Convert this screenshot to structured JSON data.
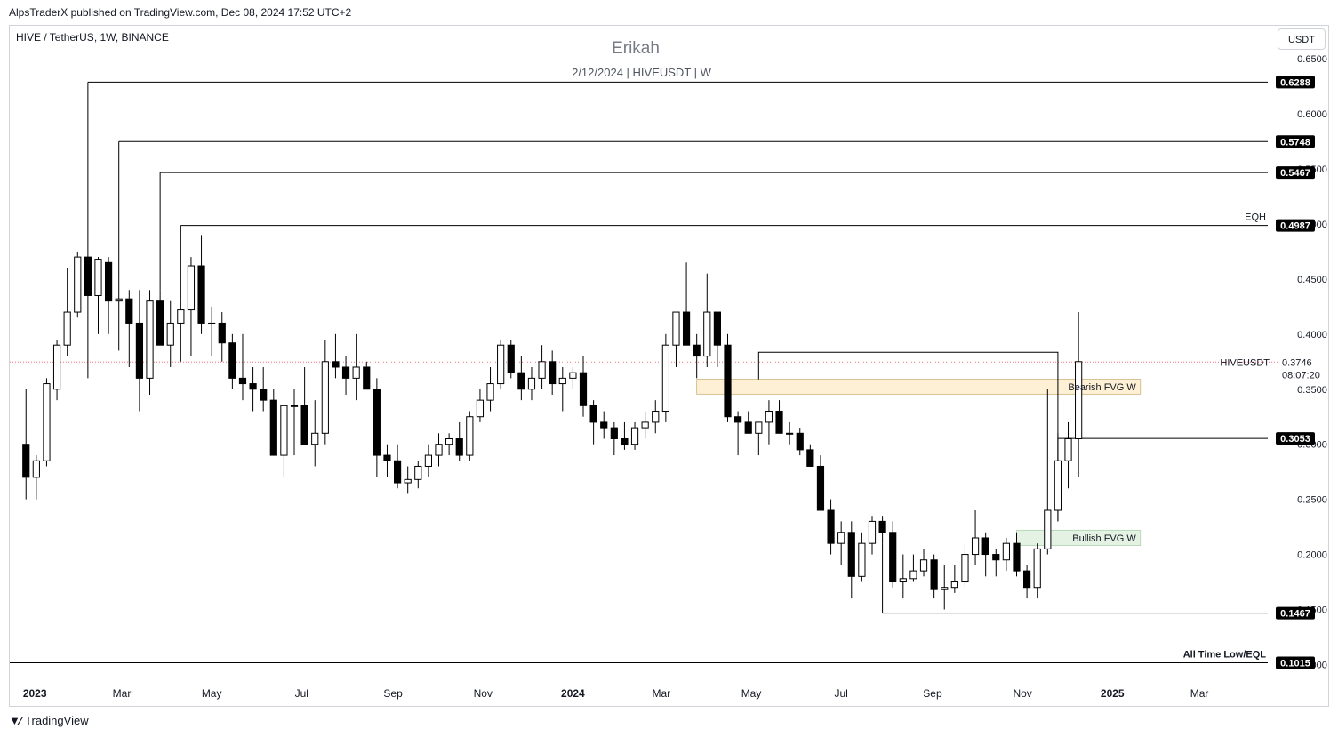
{
  "header": {
    "published_by": "AlpsTraderX published on TradingView.com, Dec 08, 2024 17:52 UTC+2",
    "symbol_label": "HIVE / TetherUS, 1W, BINANCE",
    "title": "Erikah",
    "subtitle": "2/12/2024 | HIVEUSDT | W",
    "currency": "USDT"
  },
  "footer": {
    "brand": "TradingView",
    "logo_icon": "tradingview-logo-icon"
  },
  "colors": {
    "up_body": "#ffffff",
    "down_body": "#000000",
    "wick": "#000000",
    "bearish_fvg": "#fdf0d5",
    "bullish_fvg": "#e4f2e4",
    "current_price_line": "#f23645"
  },
  "chart_data": {
    "type": "candlestick",
    "symbol": "HIVEUSDT",
    "interval": "1W",
    "y_axis": {
      "ticks": [
        "0.6500",
        "0.6000",
        "0.5500",
        "0.5000",
        "0.4500",
        "0.4000",
        "0.3500",
        "0.3000",
        "0.2500",
        "0.2000",
        "0.1500",
        "0.1000"
      ],
      "range": [
        0.085,
        0.68
      ]
    },
    "x_axis": {
      "labels": [
        "2023",
        "Mar",
        "May",
        "Jul",
        "Sep",
        "Nov",
        "2024",
        "Mar",
        "May",
        "Jul",
        "Sep",
        "Nov",
        "2025",
        "Mar"
      ],
      "label_dates": [
        "2023-01-01",
        "2023-03-01",
        "2023-05-01",
        "2023-07-01",
        "2023-09-01",
        "2023-11-01",
        "2024-01-01",
        "2024-03-01",
        "2024-05-01",
        "2024-07-01",
        "2024-09-01",
        "2024-11-01",
        "2025-01-01",
        "2025-03-01"
      ],
      "bold_labels": [
        "2023",
        "2024",
        "2025"
      ],
      "range": [
        "2022-12-15",
        "2025-04-20"
      ]
    },
    "first_candle_week": "2022-12-26",
    "candles": [
      [
        0.3,
        0.35,
        0.25,
        0.27
      ],
      [
        0.27,
        0.29,
        0.25,
        0.285
      ],
      [
        0.285,
        0.36,
        0.28,
        0.355
      ],
      [
        0.35,
        0.395,
        0.34,
        0.39
      ],
      [
        0.39,
        0.46,
        0.38,
        0.42
      ],
      [
        0.42,
        0.475,
        0.415,
        0.47
      ],
      [
        0.47,
        0.475,
        0.36,
        0.435
      ],
      [
        0.435,
        0.47,
        0.4,
        0.468
      ],
      [
        0.465,
        0.47,
        0.4,
        0.43
      ],
      [
        0.43,
        0.45,
        0.385,
        0.432
      ],
      [
        0.432,
        0.44,
        0.37,
        0.41
      ],
      [
        0.41,
        0.44,
        0.33,
        0.36
      ],
      [
        0.36,
        0.44,
        0.345,
        0.43
      ],
      [
        0.43,
        0.44,
        0.39,
        0.39
      ],
      [
        0.39,
        0.43,
        0.37,
        0.41
      ],
      [
        0.41,
        0.43,
        0.375,
        0.422
      ],
      [
        0.422,
        0.47,
        0.38,
        0.462
      ],
      [
        0.462,
        0.49,
        0.4,
        0.41
      ],
      [
        0.41,
        0.425,
        0.38,
        0.41
      ],
      [
        0.41,
        0.42,
        0.375,
        0.392
      ],
      [
        0.392,
        0.4,
        0.35,
        0.36
      ],
      [
        0.36,
        0.4,
        0.34,
        0.355
      ],
      [
        0.355,
        0.37,
        0.33,
        0.35
      ],
      [
        0.35,
        0.37,
        0.33,
        0.34
      ],
      [
        0.34,
        0.35,
        0.29,
        0.29
      ],
      [
        0.29,
        0.33,
        0.27,
        0.335
      ],
      [
        0.335,
        0.35,
        0.29,
        0.335
      ],
      [
        0.335,
        0.37,
        0.3,
        0.3
      ],
      [
        0.3,
        0.34,
        0.28,
        0.31
      ],
      [
        0.31,
        0.395,
        0.3,
        0.375
      ],
      [
        0.375,
        0.4,
        0.36,
        0.37
      ],
      [
        0.37,
        0.38,
        0.345,
        0.36
      ],
      [
        0.36,
        0.4,
        0.34,
        0.37
      ],
      [
        0.37,
        0.375,
        0.35,
        0.35
      ],
      [
        0.35,
        0.36,
        0.27,
        0.29
      ],
      [
        0.29,
        0.3,
        0.27,
        0.285
      ],
      [
        0.285,
        0.3,
        0.26,
        0.265
      ],
      [
        0.265,
        0.28,
        0.255,
        0.268
      ],
      [
        0.268,
        0.285,
        0.26,
        0.28
      ],
      [
        0.28,
        0.3,
        0.27,
        0.29
      ],
      [
        0.29,
        0.31,
        0.28,
        0.3
      ],
      [
        0.3,
        0.31,
        0.29,
        0.305
      ],
      [
        0.305,
        0.32,
        0.285,
        0.29
      ],
      [
        0.29,
        0.33,
        0.285,
        0.325
      ],
      [
        0.325,
        0.35,
        0.32,
        0.34
      ],
      [
        0.34,
        0.37,
        0.33,
        0.355
      ],
      [
        0.355,
        0.395,
        0.35,
        0.39
      ],
      [
        0.39,
        0.395,
        0.36,
        0.365
      ],
      [
        0.365,
        0.38,
        0.34,
        0.35
      ],
      [
        0.35,
        0.37,
        0.34,
        0.36
      ],
      [
        0.36,
        0.39,
        0.35,
        0.375
      ],
      [
        0.375,
        0.385,
        0.345,
        0.355
      ],
      [
        0.355,
        0.37,
        0.33,
        0.36
      ],
      [
        0.36,
        0.37,
        0.35,
        0.365
      ],
      [
        0.365,
        0.38,
        0.325,
        0.335
      ],
      [
        0.335,
        0.34,
        0.3,
        0.32
      ],
      [
        0.32,
        0.33,
        0.305,
        0.315
      ],
      [
        0.315,
        0.32,
        0.29,
        0.305
      ],
      [
        0.305,
        0.32,
        0.295,
        0.3
      ],
      [
        0.3,
        0.32,
        0.295,
        0.315
      ],
      [
        0.315,
        0.33,
        0.305,
        0.32
      ],
      [
        0.32,
        0.34,
        0.31,
        0.33
      ],
      [
        0.33,
        0.4,
        0.32,
        0.39
      ],
      [
        0.39,
        0.42,
        0.37,
        0.42
      ],
      [
        0.42,
        0.465,
        0.39,
        0.39
      ],
      [
        0.39,
        0.4,
        0.36,
        0.38
      ],
      [
        0.38,
        0.455,
        0.37,
        0.42
      ],
      [
        0.42,
        0.42,
        0.37,
        0.39
      ],
      [
        0.39,
        0.4,
        0.32,
        0.325
      ],
      [
        0.325,
        0.33,
        0.29,
        0.32
      ],
      [
        0.32,
        0.33,
        0.31,
        0.31
      ],
      [
        0.31,
        0.32,
        0.29,
        0.32
      ],
      [
        0.32,
        0.34,
        0.3,
        0.33
      ],
      [
        0.33,
        0.34,
        0.31,
        0.31
      ],
      [
        0.31,
        0.32,
        0.3,
        0.31
      ],
      [
        0.31,
        0.315,
        0.29,
        0.295
      ],
      [
        0.295,
        0.3,
        0.28,
        0.28
      ],
      [
        0.28,
        0.29,
        0.24,
        0.24
      ],
      [
        0.24,
        0.25,
        0.2,
        0.21
      ],
      [
        0.21,
        0.23,
        0.19,
        0.22
      ],
      [
        0.22,
        0.23,
        0.16,
        0.18
      ],
      [
        0.18,
        0.22,
        0.175,
        0.21
      ],
      [
        0.21,
        0.235,
        0.2,
        0.23
      ],
      [
        0.23,
        0.235,
        0.21,
        0.22
      ],
      [
        0.22,
        0.23,
        0.17,
        0.175
      ],
      [
        0.175,
        0.2,
        0.16,
        0.178
      ],
      [
        0.178,
        0.2,
        0.175,
        0.185
      ],
      [
        0.185,
        0.205,
        0.18,
        0.195
      ],
      [
        0.195,
        0.2,
        0.16,
        0.168
      ],
      [
        0.168,
        0.19,
        0.15,
        0.17
      ],
      [
        0.17,
        0.19,
        0.165,
        0.175
      ],
      [
        0.175,
        0.21,
        0.17,
        0.2
      ],
      [
        0.2,
        0.24,
        0.19,
        0.215
      ],
      [
        0.215,
        0.22,
        0.18,
        0.2
      ],
      [
        0.2,
        0.205,
        0.18,
        0.195
      ],
      [
        0.195,
        0.215,
        0.185,
        0.21
      ],
      [
        0.21,
        0.22,
        0.18,
        0.185
      ],
      [
        0.185,
        0.19,
        0.16,
        0.17
      ],
      [
        0.17,
        0.21,
        0.16,
        0.205
      ],
      [
        0.205,
        0.35,
        0.2,
        0.24
      ],
      [
        0.24,
        0.31,
        0.23,
        0.285
      ],
      [
        0.285,
        0.32,
        0.26,
        0.305
      ],
      [
        0.305,
        0.42,
        0.27,
        0.375
      ]
    ],
    "levels": [
      {
        "price": 0.6288,
        "label": "0.6288",
        "start_week": 6
      },
      {
        "price": 0.5748,
        "label": "0.5748",
        "start_week": 9
      },
      {
        "price": 0.5467,
        "label": "0.5467",
        "start_week": 13
      },
      {
        "price": 0.4987,
        "label": "0.4987",
        "start_week": 15,
        "annotation": "EQH"
      },
      {
        "price": 0.3053,
        "label": "0.3053",
        "start_week": 100
      },
      {
        "price": 0.1467,
        "label": "0.1467",
        "start_week": 83
      },
      {
        "price": 0.1015,
        "label": "0.1015",
        "start_week": -2,
        "annotation": "All Time Low/EQL"
      }
    ],
    "connector_line": {
      "price": 0.3835,
      "from_week": 71,
      "to_week": 100
    },
    "zones": [
      {
        "name": "Bearish FVG W",
        "top": 0.359,
        "bottom": 0.3455,
        "from_week": 65,
        "to_week": 108,
        "kind": "bearish"
      },
      {
        "name": "Bullish FVG W",
        "top": 0.222,
        "bottom": 0.208,
        "from_week": 96,
        "to_week": 108,
        "kind": "bullish"
      }
    ],
    "current_price": {
      "symbol": "HIVEUSDT",
      "price": 0.3746,
      "label": "0.3746",
      "countdown": "08:07:20"
    }
  }
}
